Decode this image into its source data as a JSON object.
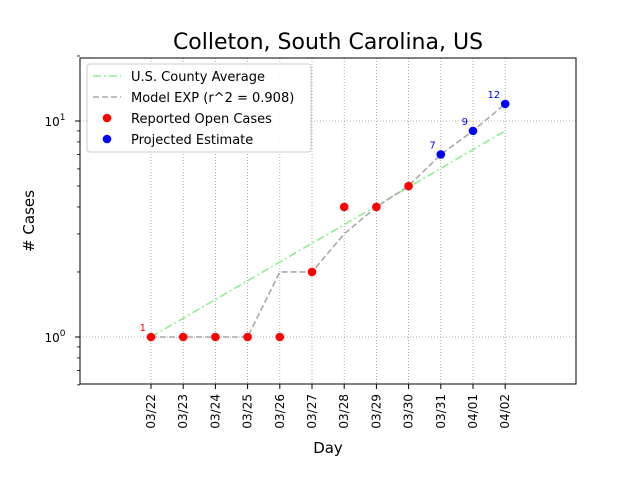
{
  "chart_data": {
    "type": "line",
    "title": "Colleton, South Carolina, US",
    "xlabel": "Day",
    "ylabel": "# Cases",
    "yscale": "log",
    "ylim": [
      0.6,
      20
    ],
    "y_ticks": [
      {
        "value": 1,
        "label": "10",
        "sup": "0"
      },
      {
        "value": 10,
        "label": "10",
        "sup": "1"
      }
    ],
    "categories": [
      "03/22",
      "03/23",
      "03/24",
      "03/25",
      "03/26",
      "03/27",
      "03/28",
      "03/29",
      "03/30",
      "03/31",
      "04/01",
      "04/02"
    ],
    "grid": true,
    "legend_position": "upper-left",
    "colors": {
      "county_average": "#90ee90",
      "model": "#a9a9a9",
      "reported": "#ff0000",
      "projected": "#0000ff"
    },
    "series": [
      {
        "name": "U.S. County Average",
        "style": "dash-dot",
        "x": [
          "03/22",
          "04/02"
        ],
        "values": [
          1.0,
          9.0
        ]
      },
      {
        "name": "Model EXP (r^2 = 0.908)",
        "style": "dashed",
        "x": [
          "03/22",
          "03/23",
          "03/24",
          "03/25",
          "03/26",
          "03/27",
          "03/28",
          "03/29",
          "03/30",
          "03/31",
          "04/01",
          "04/02"
        ],
        "values": [
          1,
          1,
          1,
          1,
          2,
          2,
          3,
          4,
          5,
          7,
          9,
          12
        ]
      },
      {
        "name": "Reported Open Cases",
        "style": "markers",
        "x": [
          "03/22",
          "03/23",
          "03/24",
          "03/25",
          "03/26",
          "03/27",
          "03/28",
          "03/29",
          "03/30"
        ],
        "values": [
          1,
          1,
          1,
          1,
          1,
          2,
          4,
          4,
          5
        ]
      },
      {
        "name": "Projected Estimate",
        "style": "markers",
        "x": [
          "03/31",
          "04/01",
          "04/02"
        ],
        "values": [
          7,
          9,
          12
        ]
      }
    ],
    "annotations": [
      {
        "x": "03/22",
        "value": 1,
        "text": "1",
        "color": "#ff0000"
      },
      {
        "x": "03/31",
        "value": 7,
        "text": "7",
        "color": "#0000ff"
      },
      {
        "x": "04/01",
        "value": 9,
        "text": "9",
        "color": "#0000ff"
      },
      {
        "x": "04/02",
        "value": 12,
        "text": "12",
        "color": "#0000ff"
      }
    ]
  }
}
